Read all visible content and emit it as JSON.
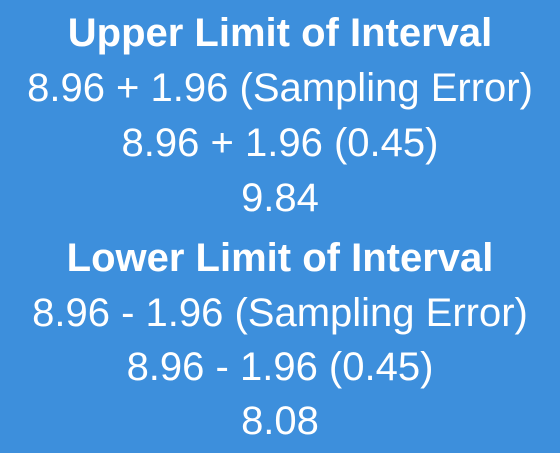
{
  "upper": {
    "title": "Upper Limit of Interval",
    "line1": "8.96 + 1.96 (Sampling Error)",
    "line2": "8.96 + 1.96 (0.45)",
    "result": "9.84"
  },
  "lower": {
    "title": "Lower Limit of Interval",
    "line1": "8.96 - 1.96 (Sampling Error)",
    "line2": "8.96 - 1.96 (0.45)",
    "result": "8.08"
  },
  "colors": {
    "background": "#3d8fdc",
    "text": "#ffffff"
  }
}
